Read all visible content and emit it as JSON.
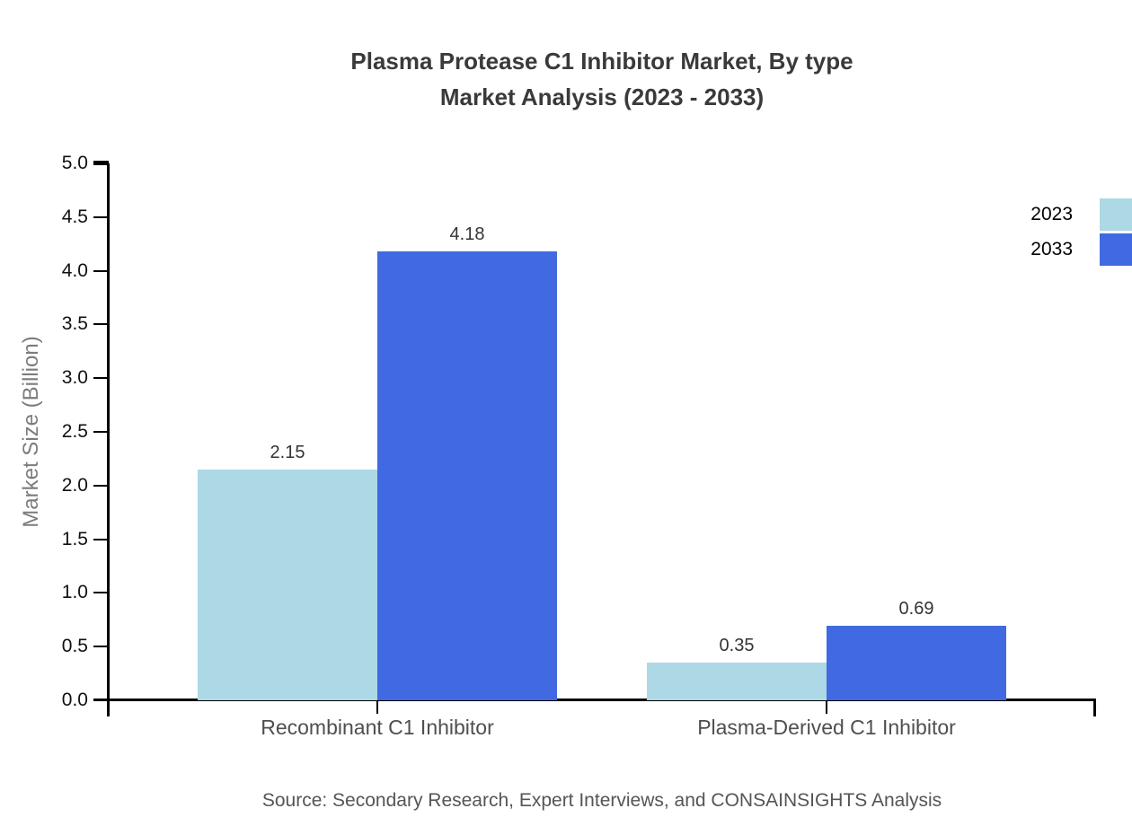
{
  "title": {
    "line1": "Plasma Protease C1 Inhibitor Market, By type",
    "line2": "Market Analysis (2023 - 2033)"
  },
  "chart_data": {
    "type": "bar",
    "categories": [
      "Recombinant C1 Inhibitor",
      "Plasma-Derived C1 Inhibitor"
    ],
    "series": [
      {
        "name": "2023",
        "values": [
          2.15,
          0.35
        ],
        "color": "#add8e6"
      },
      {
        "name": "2033",
        "values": [
          4.18,
          0.69
        ],
        "color": "#4169e1"
      }
    ],
    "ylabel": "Market Size (Billion)",
    "ylim": [
      0,
      5
    ],
    "yticks": [
      "0.0",
      "0.5",
      "1.0",
      "1.5",
      "2.0",
      "2.5",
      "3.0",
      "3.5",
      "4.0",
      "4.5",
      "5.0"
    ],
    "grid": false,
    "legend_position": "top-right",
    "value_label_format": "two-decimals",
    "axis_color": "#000000"
  },
  "footer": {
    "source": "Source: Secondary Research, Expert Interviews, and CONSAINSIGHTS Analysis"
  }
}
